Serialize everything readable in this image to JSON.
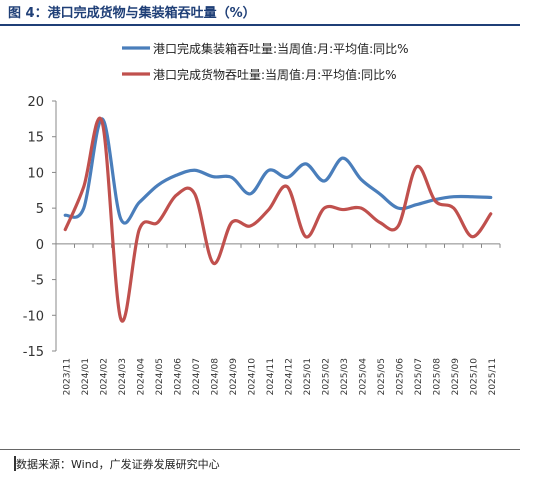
{
  "figure": {
    "title": "图 4：港口完成货物与集装箱吞吐量（%）",
    "source": "数据来源：Wind，广发证券发展研究中心"
  },
  "chart_data": {
    "type": "line",
    "title": "",
    "xlabel": "",
    "ylabel": "",
    "ylim": [
      -15,
      20
    ],
    "yticks": [
      "20",
      "15",
      "10",
      "5",
      "0",
      "-5",
      "-10",
      "-15"
    ],
    "x_tick_labels": [
      "2023/11",
      "2024/01",
      "2024/02",
      "2024/03",
      "2024/04",
      "2024/05",
      "2024/06",
      "2024/07",
      "2024/08",
      "2024/09",
      "2024/10",
      "2024/11",
      "2024/12",
      "2025/01",
      "2025/02",
      "2025/03",
      "2025/04",
      "2025/05",
      "2025/06",
      "2025/07",
      "2025/08",
      "2025/09",
      "2025/10",
      "2025/11"
    ],
    "grid": false,
    "legend_position": "top",
    "series": [
      {
        "name": "港口完成集装箱吞吐量:当周值:月:平均值:同比%",
        "color": "#4a7ebb",
        "values": [
          4.0,
          5.0,
          17.5,
          3.5,
          5.8,
          8.2,
          9.6,
          10.3,
          9.4,
          9.3,
          7.0,
          10.3,
          9.3,
          11.2,
          8.8,
          12.0,
          9.0,
          7.0,
          5.0,
          5.5,
          6.2,
          6.6,
          6.6,
          6.5
        ]
      },
      {
        "name": "港口完成货物吞吐量:当周值:月:平均值:同比%",
        "color": "#c0504d",
        "values": [
          2.0,
          8.0,
          17.0,
          -10.5,
          2.0,
          3.0,
          6.8,
          7.0,
          -2.7,
          3.0,
          2.5,
          4.8,
          8.0,
          1.0,
          5.0,
          4.8,
          5.0,
          3.0,
          2.5,
          10.8,
          6.0,
          5.0,
          1.0,
          4.2
        ]
      }
    ]
  }
}
